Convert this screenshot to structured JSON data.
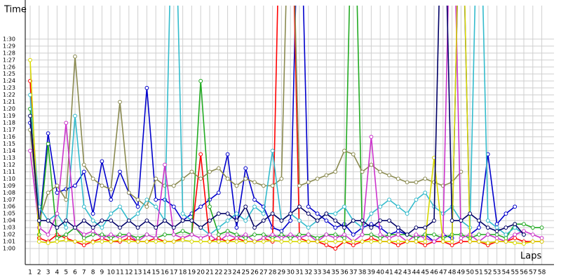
{
  "chart_data": {
    "type": "line",
    "y_label": "Time",
    "x_label": "Laps",
    "categories": [
      1,
      2,
      3,
      4,
      5,
      6,
      7,
      8,
      9,
      10,
      11,
      12,
      13,
      14,
      15,
      16,
      17,
      18,
      19,
      20,
      21,
      22,
      23,
      24,
      25,
      26,
      27,
      28,
      29,
      30,
      31,
      32,
      33,
      34,
      35,
      36,
      37,
      38,
      39,
      40,
      41,
      42,
      43,
      44,
      45,
      46,
      47,
      48,
      49,
      50,
      51,
      52,
      53,
      54,
      55,
      56,
      57,
      58
    ],
    "ylim": [
      57.7,
      94.8
    ],
    "yticks": [
      {
        "value": 60,
        "label": "1:00"
      },
      {
        "value": 61,
        "label": "1:01"
      },
      {
        "value": 62,
        "label": "1:02"
      },
      {
        "value": 63,
        "label": "1:03"
      },
      {
        "value": 64,
        "label": "1:04"
      },
      {
        "value": 65,
        "label": "1:05"
      },
      {
        "value": 66,
        "label": "1:06"
      },
      {
        "value": 67,
        "label": "1:07"
      },
      {
        "value": 68,
        "label": "1:08"
      },
      {
        "value": 69,
        "label": "1:09"
      },
      {
        "value": 70,
        "label": "1:10"
      },
      {
        "value": 71,
        "label": "1:11"
      },
      {
        "value": 72,
        "label": "1:12"
      },
      {
        "value": 73,
        "label": "1:13"
      },
      {
        "value": 74,
        "label": "1:14"
      },
      {
        "value": 75,
        "label": "1:15"
      },
      {
        "value": 76,
        "label": "1:16"
      },
      {
        "value": 77,
        "label": "1:17"
      },
      {
        "value": 78,
        "label": "1:18"
      },
      {
        "value": 79,
        "label": "1:19"
      },
      {
        "value": 80,
        "label": "1:20"
      },
      {
        "value": 81,
        "label": "1:21"
      },
      {
        "value": 82,
        "label": "1:22"
      },
      {
        "value": 83,
        "label": "1:23"
      },
      {
        "value": 84,
        "label": "1:24"
      },
      {
        "value": 85,
        "label": "1:25"
      },
      {
        "value": 86,
        "label": "1:26"
      },
      {
        "value": 87,
        "label": "1:27"
      },
      {
        "value": 88,
        "label": "1:28"
      },
      {
        "value": 89,
        "label": "1:29"
      },
      {
        "value": 90,
        "label": "1:30"
      }
    ],
    "grid": true,
    "series": [
      {
        "color": "#0000cc",
        "values": [
          78,
          63,
          76.5,
          68,
          68.5,
          69,
          71,
          65,
          72.5,
          67,
          71,
          68,
          66,
          83,
          67,
          67,
          66,
          64,
          65,
          66,
          67,
          68,
          73.5,
          63,
          71.5,
          67,
          66,
          63,
          62.5,
          64,
          118,
          66,
          65,
          64,
          63,
          63.5,
          62,
          63,
          63.5,
          63,
          62,
          62.5,
          62,
          61.5,
          62,
          61,
          62,
          61.5,
          118,
          62,
          63,
          73.5,
          63.5,
          65,
          66,
          null,
          null,
          null
        ]
      },
      {
        "color": "#ff0000",
        "values": [
          84,
          61.5,
          61,
          62,
          61.5,
          61,
          60.5,
          61,
          61.5,
          61,
          61,
          61.5,
          61,
          61,
          61.5,
          61,
          61,
          61.5,
          62,
          73.5,
          61,
          61.5,
          61,
          61.5,
          61,
          61,
          61.5,
          61,
          120,
          120,
          61.5,
          61,
          61,
          60.5,
          60,
          61,
          60.5,
          61,
          61.5,
          61,
          61,
          60.5,
          61,
          61,
          60.5,
          61,
          61,
          60.5,
          61,
          61,
          61,
          60.5,
          61,
          61,
          61.5,
          61,
          61,
          61
        ]
      },
      {
        "color": "#22aa22",
        "values": [
          80,
          62,
          75,
          61.5,
          62,
          63,
          61.5,
          62,
          62,
          61.5,
          62,
          62,
          61.5,
          62,
          61.5,
          62,
          62,
          62.5,
          62,
          84,
          66,
          62,
          62.5,
          62,
          61.5,
          62,
          62,
          61.5,
          62,
          61.5,
          62,
          62,
          61.5,
          62,
          62,
          61.5,
          120,
          62,
          62,
          61.5,
          62,
          62,
          62,
          61.5,
          62,
          62,
          61.5,
          62,
          62,
          61.5,
          62,
          62,
          62,
          61.5,
          63.5,
          63.5,
          63,
          63
        ]
      },
      {
        "color": "#8a8a50",
        "values": [
          77,
          64,
          68,
          69,
          67,
          87.5,
          72,
          70,
          69,
          68.5,
          81,
          68,
          67,
          66,
          70,
          69,
          69,
          70,
          71,
          70,
          71,
          71.5,
          70,
          69,
          70,
          69.5,
          69,
          69,
          70,
          120,
          69,
          69.5,
          70,
          70.5,
          71,
          74,
          73.5,
          71,
          72,
          71,
          70.5,
          70,
          69.5,
          69.5,
          70,
          69.5,
          69,
          69.5,
          71,
          null,
          null,
          null,
          null,
          null,
          null,
          null,
          null,
          null
        ]
      },
      {
        "color": "#33bbcc",
        "values": [
          82,
          66,
          64,
          65,
          63,
          79,
          66,
          64,
          63,
          65,
          66,
          64,
          65,
          67,
          66,
          64,
          120,
          65,
          64,
          63,
          62,
          63,
          64,
          65,
          64,
          66,
          65,
          74,
          64,
          65,
          64,
          63,
          64,
          65,
          65,
          66,
          64,
          63,
          65,
          66,
          67,
          66,
          65,
          67,
          68,
          66,
          65,
          66,
          64,
          63,
          120,
          64,
          63,
          62,
          63,
          62,
          null,
          null
        ]
      },
      {
        "color": "#cc33cc",
        "values": [
          74,
          63,
          62,
          65,
          78,
          63,
          62,
          62.5,
          61.5,
          62,
          61.5,
          62,
          61,
          62,
          61.5,
          72,
          62,
          61.5,
          62,
          61.5,
          62,
          61,
          62,
          61.5,
          62,
          61,
          61.5,
          62,
          61.5,
          62,
          61.5,
          62,
          61,
          62,
          61.5,
          62,
          61,
          62,
          76,
          62,
          61.5,
          62,
          61,
          62,
          61.5,
          61,
          62,
          120,
          61.5,
          62,
          61,
          62,
          61.5,
          61,
          62,
          62.5,
          62,
          61.5
        ]
      },
      {
        "color": "#d8d800",
        "values": [
          87,
          61,
          60.8,
          61,
          61.2,
          61,
          61,
          60.9,
          61,
          61,
          61.2,
          61,
          61,
          61,
          61,
          61,
          61,
          61.2,
          61,
          61,
          61,
          61,
          61,
          61,
          61,
          61,
          61,
          61.2,
          61,
          61,
          61,
          61,
          61,
          61,
          61,
          61,
          61,
          61,
          61,
          61,
          61,
          61,
          61,
          61,
          61,
          73,
          61,
          61,
          120,
          61,
          61,
          60.8,
          61,
          61,
          60.8,
          60.7,
          61,
          61
        ]
      },
      {
        "color": "#000066",
        "values": [
          79,
          64,
          64,
          63,
          64,
          63,
          64,
          63,
          64,
          64,
          63,
          64,
          63,
          64,
          63,
          64,
          63,
          64,
          64,
          63,
          64,
          65,
          65,
          64,
          66,
          63,
          64,
          65,
          64,
          65,
          66,
          65,
          64,
          65,
          64,
          63,
          64,
          64,
          63,
          64,
          64,
          63,
          62,
          63,
          63,
          64,
          120,
          64,
          64,
          65,
          64,
          63,
          62.5,
          63,
          63.5,
          62,
          null,
          null
        ]
      }
    ]
  }
}
